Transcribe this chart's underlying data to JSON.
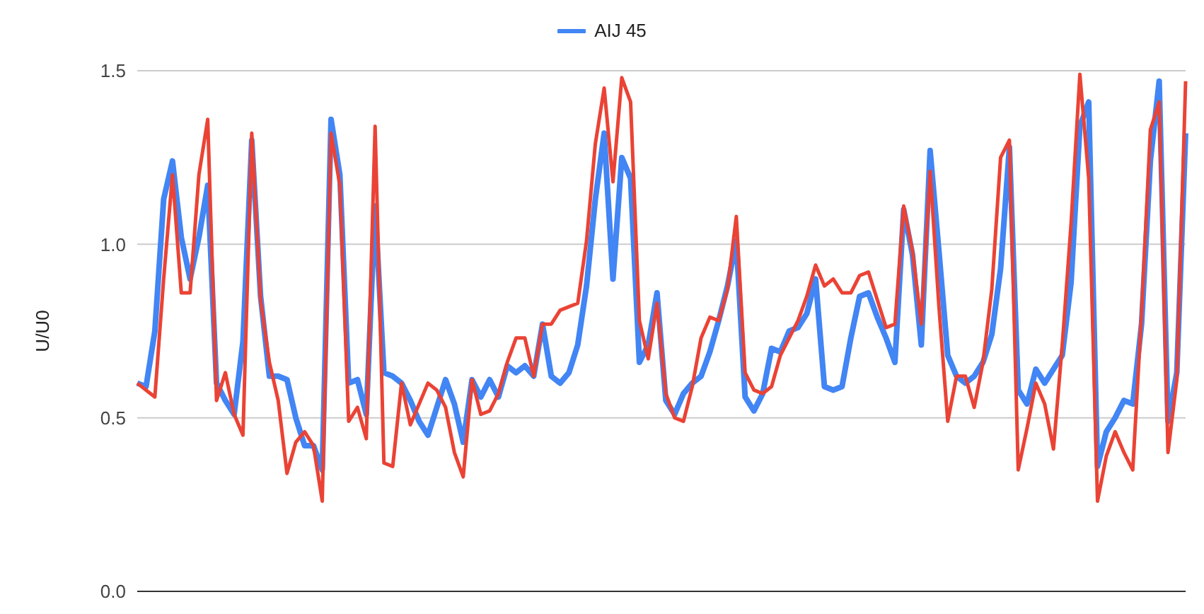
{
  "chart_data": {
    "type": "line",
    "ylabel": "U/U0",
    "categories": [
      null,
      null,
      null,
      null,
      null,
      null,
      null,
      null,
      null,
      null,
      null,
      null,
      null,
      null,
      null,
      null,
      null,
      null,
      null,
      null,
      null,
      null,
      null,
      null,
      null,
      null,
      null,
      null,
      null,
      null,
      null,
      null,
      null,
      null,
      null,
      null,
      null,
      null,
      null,
      null,
      null,
      null,
      null,
      null,
      null,
      null,
      null,
      null,
      null,
      null,
      null,
      null,
      null,
      null,
      null,
      null,
      null,
      null,
      null,
      null,
      null,
      null,
      null,
      null,
      null,
      null,
      null,
      null,
      null,
      null,
      null,
      null,
      null,
      null,
      null,
      null,
      null,
      null,
      null,
      null,
      null,
      null,
      null,
      null,
      null,
      null,
      null,
      null,
      null,
      null,
      null,
      null,
      null,
      null,
      null,
      null,
      null,
      null,
      null,
      null,
      null,
      null,
      null,
      null,
      null,
      null,
      null,
      null,
      null,
      null,
      null,
      null,
      null,
      null,
      null,
      null,
      null,
      null,
      null,
      null
    ],
    "series": [
      {
        "name": "AIJ 45",
        "color": "#4285f4",
        "values": [
          0.6,
          0.59,
          0.75,
          1.13,
          1.24,
          1.02,
          0.9,
          1.02,
          1.17,
          0.6,
          0.55,
          0.51,
          0.72,
          1.3,
          0.85,
          0.62,
          0.62,
          0.61,
          0.5,
          0.42,
          0.42,
          0.35,
          1.36,
          1.2,
          0.6,
          0.61,
          0.51,
          1.11,
          0.63,
          0.62,
          0.6,
          0.55,
          0.49,
          0.45,
          0.53,
          0.61,
          0.54,
          0.43,
          0.61,
          0.56,
          0.61,
          0.56,
          0.65,
          0.63,
          0.65,
          0.62,
          0.77,
          0.62,
          0.6,
          0.63,
          0.71,
          0.88,
          1.13,
          1.32,
          0.9,
          1.25,
          1.19,
          0.66,
          0.71,
          0.86,
          0.55,
          0.51,
          0.57,
          0.6,
          0.62,
          0.69,
          0.78,
          0.88,
          1.01,
          0.56,
          0.52,
          0.57,
          0.7,
          0.69,
          0.75,
          0.76,
          0.8,
          0.9,
          0.59,
          0.58,
          0.59,
          0.73,
          0.85,
          0.86,
          0.79,
          0.73,
          0.66,
          1.1,
          0.97,
          0.71,
          1.27,
          0.98,
          0.68,
          0.62,
          0.6,
          0.62,
          0.66,
          0.74,
          0.93,
          1.28,
          0.58,
          0.54,
          0.64,
          0.6,
          0.64,
          0.68,
          0.89,
          1.34,
          1.41,
          0.36,
          0.46,
          0.5,
          0.55,
          0.54,
          0.77,
          1.24,
          1.47,
          0.49,
          0.63,
          1.32
        ]
      },
      {
        "color": "#ea4335",
        "values": [
          0.6,
          0.58,
          0.56,
          0.9,
          1.2,
          0.86,
          0.86,
          1.2,
          1.36,
          0.55,
          0.63,
          0.51,
          0.45,
          1.32,
          0.84,
          0.66,
          0.55,
          0.34,
          0.43,
          0.46,
          0.42,
          0.26,
          1.32,
          1.17,
          0.49,
          0.53,
          0.44,
          1.34,
          0.37,
          0.36,
          0.6,
          0.48,
          0.54,
          0.6,
          0.58,
          0.53,
          0.4,
          0.33,
          0.61,
          0.51,
          0.52,
          0.57,
          0.66,
          0.73,
          0.73,
          0.62,
          0.77,
          0.77,
          0.81,
          0.82,
          0.83,
          1.01,
          1.29,
          1.45,
          1.18,
          1.48,
          1.41,
          0.78,
          0.67,
          0.83,
          0.57,
          0.5,
          0.49,
          0.59,
          0.73,
          0.79,
          0.78,
          0.87,
          1.08,
          0.63,
          0.58,
          0.57,
          0.59,
          0.68,
          0.73,
          0.78,
          0.85,
          0.94,
          0.88,
          0.9,
          0.86,
          0.86,
          0.91,
          0.92,
          0.84,
          0.76,
          0.77,
          1.11,
          0.98,
          0.77,
          1.21,
          0.82,
          0.49,
          0.62,
          0.62,
          0.53,
          0.66,
          0.87,
          1.25,
          1.3,
          0.35,
          0.47,
          0.6,
          0.54,
          0.41,
          0.71,
          1.06,
          1.49,
          1.19,
          0.26,
          0.39,
          0.46,
          0.4,
          0.35,
          0.8,
          1.33,
          1.41,
          0.4,
          0.61,
          1.47
        ]
      }
    ],
    "ylim": [
      0,
      1.5
    ],
    "yticks": [
      {
        "value": 0,
        "label": "0.0"
      },
      0.5,
      {
        "value": 1,
        "label": "1.0"
      },
      1.5
    ],
    "grid": "y",
    "legend": "top",
    "tick_labels": "y",
    "marker": "none",
    "line_style": "solid"
  }
}
